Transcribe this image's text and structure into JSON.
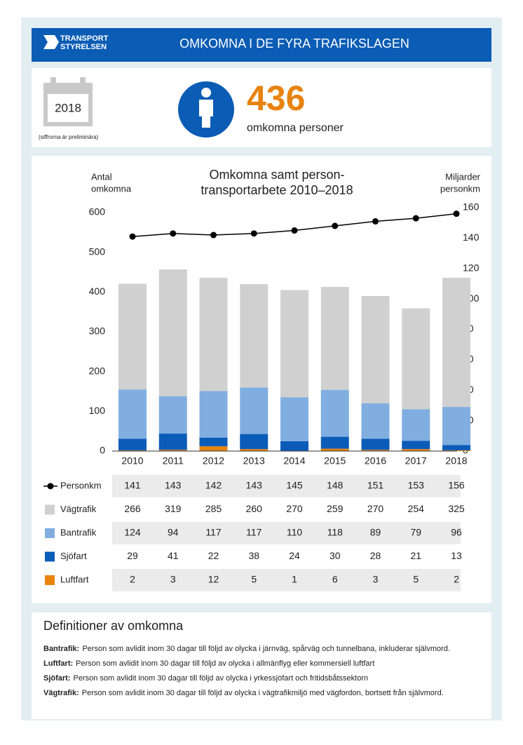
{
  "header": {
    "logo": [
      "TRANSPORT",
      "STYRELSEN"
    ],
    "title": "OMKOMNA I DE FYRA TRAFIKSLAGEN"
  },
  "stat": {
    "year": "2018",
    "note": "(siffrorna är preliminära)",
    "value": "436",
    "label": "omkomna personer"
  },
  "chart_data": {
    "type": "bar",
    "title": [
      "Omkomna samt person-",
      "transportarbete 2010–2018"
    ],
    "ylabel": [
      "Antal",
      "omkomna"
    ],
    "y2label": [
      "Miljarder",
      "personkm"
    ],
    "categories": [
      "2010",
      "2011",
      "2012",
      "2013",
      "2014",
      "2015",
      "2016",
      "2017",
      "2018"
    ],
    "ylim": [
      0,
      600
    ],
    "yticks": [
      0,
      100,
      200,
      300,
      400,
      500,
      600
    ],
    "y2lim": [
      0,
      160
    ],
    "y2ticks": [
      0,
      20,
      40,
      60,
      80,
      100,
      120,
      140,
      160
    ],
    "series": [
      {
        "name": "Personkm",
        "color": "#000000",
        "type": "line",
        "axis": "y2",
        "values": [
          141,
          143,
          142,
          143,
          145,
          148,
          151,
          153,
          156
        ]
      },
      {
        "name": "Vägtrafik",
        "color": "#d0d0d0",
        "values": [
          266,
          319,
          285,
          260,
          270,
          259,
          270,
          254,
          325
        ]
      },
      {
        "name": "Bantrafik",
        "color": "#80aee0",
        "values": [
          124,
          94,
          117,
          117,
          110,
          118,
          89,
          79,
          96
        ]
      },
      {
        "name": "Sjöfart",
        "color": "#0b5cb8",
        "values": [
          29,
          41,
          22,
          38,
          24,
          30,
          28,
          21,
          13
        ]
      },
      {
        "name": "Luftfart",
        "color": "#e8830f",
        "values": [
          2,
          3,
          12,
          5,
          1,
          6,
          3,
          5,
          2
        ]
      }
    ]
  },
  "definitions": {
    "title": "Definitioner av omkomna",
    "items": [
      {
        "term": "Bantrafik:",
        "text": "Person som avlidit inom 30 dagar till följd av olycka i järnväg, spårväg och tunnelbana, inkluderar självmord."
      },
      {
        "term": "Luftfart:",
        "text": "Person som avlidit inom 30 dagar till följd av olycka i allmänflyg eller kommersiell luftfart"
      },
      {
        "term": "Sjöfart:",
        "text": "Person som avlidit inom 30 dagar till följd av olycka i yrkessjöfart och fritidsbåtssektorn"
      },
      {
        "term": "Vägtrafik:",
        "text": "Person som avlidit inom 30 dagar till följd av olycka i vägtrafikmiljö med vägfordon, bortsett från självmord."
      }
    ]
  }
}
